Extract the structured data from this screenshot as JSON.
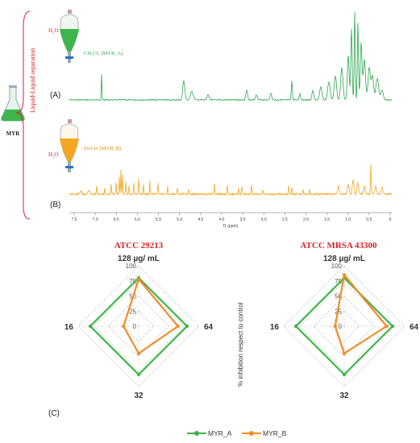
{
  "colors": {
    "green": "#3db54a",
    "orange": "#f28c28",
    "red": "#d9232a",
    "spectrum_a": "#2fa84f",
    "spectrum_b": "#f5a623",
    "dark": "#333333"
  },
  "panel_top": {
    "bracket_label": "Liquid-Liquid separation",
    "source_label": "MYR",
    "flask_icon": "erlenmeyer-flask-icon",
    "funnel_icon": "separatory-funnel-icon",
    "phase_a": {
      "solvent": "H₂O",
      "fraction": "CH₂Cl₂ (MYR_A)",
      "label": "(A)"
    },
    "phase_b": {
      "solvent": "H₂O",
      "fraction": "EtOAc (MYR_B)",
      "label": "(B)"
    },
    "axis_ticks": [
      "7.5",
      "7.0",
      "6.5",
      "6.0",
      "5.5",
      "5.0",
      "4.5",
      "4.0",
      "3.5",
      "3.0",
      "2.5",
      "2.0",
      "1.5",
      "1.0",
      "0.5",
      "0"
    ],
    "axis_label": "f1 (ppm)"
  },
  "panel_bottom": {
    "label": "(C)",
    "y_axis_label": "% inhibition respect to control",
    "legend": [
      "MYR_A",
      "MYR_B"
    ]
  },
  "chart_data": [
    {
      "type": "radar",
      "title": "ATCC 29213",
      "axes": [
        "128 µg/ mL",
        "64",
        "32",
        "16"
      ],
      "radial_ticks": [
        "100",
        "75",
        "50",
        "25",
        "0"
      ],
      "rlim": [
        0,
        100
      ],
      "series": [
        {
          "name": "MYR_A",
          "values": [
            80,
            80,
            80,
            80
          ]
        },
        {
          "name": "MYR_B",
          "values": [
            78,
            65,
            45,
            25
          ]
        }
      ]
    },
    {
      "type": "radar",
      "title": "ATCC MRSA 43300",
      "axes": [
        "128 µg/ mL",
        "64",
        "32",
        "16"
      ],
      "radial_ticks": [
        "100",
        "75",
        "50",
        "25",
        "0"
      ],
      "rlim": [
        0,
        100
      ],
      "series": [
        {
          "name": "MYR_A",
          "values": [
            80,
            80,
            80,
            80
          ]
        },
        {
          "name": "MYR_B",
          "values": [
            85,
            70,
            45,
            15
          ]
        }
      ]
    }
  ]
}
